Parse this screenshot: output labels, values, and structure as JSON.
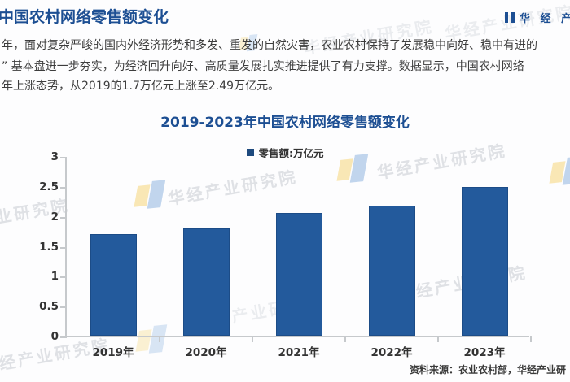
{
  "header": {
    "title": "中国农村网络零售额变化",
    "brand": "华 经 产 业"
  },
  "paragraph": {
    "line1": "年，面对复杂严峻的国内外经济形势和多发、重发的自然灾害，农业农村保持了发展稳中向好、稳中有进的",
    "line2": "” 基本盘进一步夯实，为经济回升向好、高质量发展扎实推进提供了有力支撑。数据显示，中国农村网络",
    "line3": "年上涨态势，从2019的1.7万亿元上涨至2.49万亿元。"
  },
  "watermark": {
    "text": "华经产业研究院"
  },
  "source": {
    "label": "资料来源：农业农村部，华经产业研"
  },
  "colors": {
    "brand_blue": "#1d4f93",
    "bar_blue": "#235a9c",
    "bar_border": "#1c4c87",
    "axis_gray": "#c6c9cc",
    "text_dark": "#333333",
    "watermark_gray": "#b6bcc4",
    "watermark_yellow": "#f4ca52",
    "watermark_blue": "#6f9fd8"
  },
  "chart_data": {
    "type": "bar",
    "title": "2019-2023年中国农村网络零售额变化",
    "legend": "零售额:万亿元",
    "unit": "万亿元",
    "categories": [
      "2019年",
      "2020年",
      "2021年",
      "2022年",
      "2023年"
    ],
    "values": [
      1.7,
      1.79,
      2.05,
      2.17,
      2.49
    ],
    "ylim": [
      0,
      3
    ],
    "yticks": [
      0,
      0.5,
      1,
      1.5,
      2,
      2.5,
      3
    ],
    "grid": false,
    "legend_position": "top-center"
  }
}
